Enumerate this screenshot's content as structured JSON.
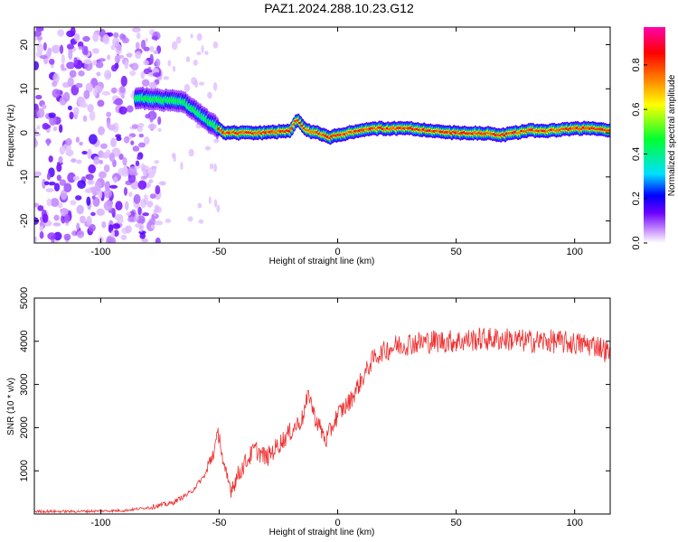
{
  "title": "PAZ1.2024.288.10.23.G12",
  "colors": {
    "snr_line": "#ee3030",
    "axis": "#000000",
    "colormap": [
      "#ffffff",
      "#c890ff",
      "#6a00ff",
      "#0000ff",
      "#00e0ff",
      "#00ff30",
      "#ffff00",
      "#ff8000",
      "#ff0000",
      "#ff00aa"
    ]
  },
  "chart_data": [
    {
      "type": "heatmap",
      "xlabel": "Height of straight line (km)",
      "ylabel": "Frequency (Hz)",
      "xlim": [
        -128,
        115
      ],
      "ylim": [
        -25,
        24
      ],
      "xticks": [
        -100,
        -50,
        0,
        50,
        100
      ],
      "yticks": [
        -20,
        -10,
        0,
        10,
        20
      ],
      "colorbar": {
        "label": "Normalized spectral amplitude",
        "range": [
          0,
          0.97
        ],
        "ticks": [
          0.0,
          0.2,
          0.4,
          0.6,
          0.8
        ]
      },
      "ridge": {
        "x": [
          -85,
          -75,
          -65,
          -58,
          -53,
          -48,
          -40,
          -30,
          -20,
          -17,
          -13,
          -8,
          -3,
          0,
          5,
          15,
          30,
          40,
          50,
          60,
          70,
          80,
          90,
          100,
          110,
          115
        ],
        "freq": [
          8,
          7.5,
          7,
          4,
          2,
          0,
          0,
          0,
          0.5,
          3,
          0.5,
          0,
          -1,
          -0.5,
          0,
          1,
          1,
          0.5,
          0,
          0,
          -0.5,
          0.5,
          0.5,
          1,
          1,
          0.5
        ]
      },
      "noise_region_x": [
        -128,
        -85
      ]
    },
    {
      "type": "line",
      "xlabel": "Height of straight line (km)",
      "ylabel": "SNR (10 * v/v)",
      "xlim": [
        -128,
        115
      ],
      "ylim": [
        0,
        5000
      ],
      "xticks": [
        -100,
        -50,
        0,
        50,
        100
      ],
      "yticks": [
        1000,
        2000,
        3000,
        4000,
        5000
      ],
      "series": [
        {
          "x": [
            -128,
            -110,
            -90,
            -80,
            -70,
            -62,
            -56,
            -52,
            -50,
            -48,
            -45,
            -40,
            -35,
            -30,
            -25,
            -20,
            -15,
            -12,
            -10,
            -5,
            0,
            5,
            10,
            15,
            20,
            25,
            30,
            40,
            50,
            60,
            70,
            80,
            90,
            100,
            110,
            115
          ],
          "values": [
            60,
            60,
            80,
            150,
            250,
            500,
            900,
            1500,
            1900,
            1000,
            600,
            1100,
            1500,
            1300,
            1600,
            1900,
            2200,
            2800,
            2300,
            1700,
            2300,
            2600,
            3100,
            3600,
            3800,
            3900,
            3950,
            4000,
            4000,
            4050,
            4050,
            4000,
            4000,
            3950,
            3900,
            3700
          ]
        }
      ]
    }
  ]
}
